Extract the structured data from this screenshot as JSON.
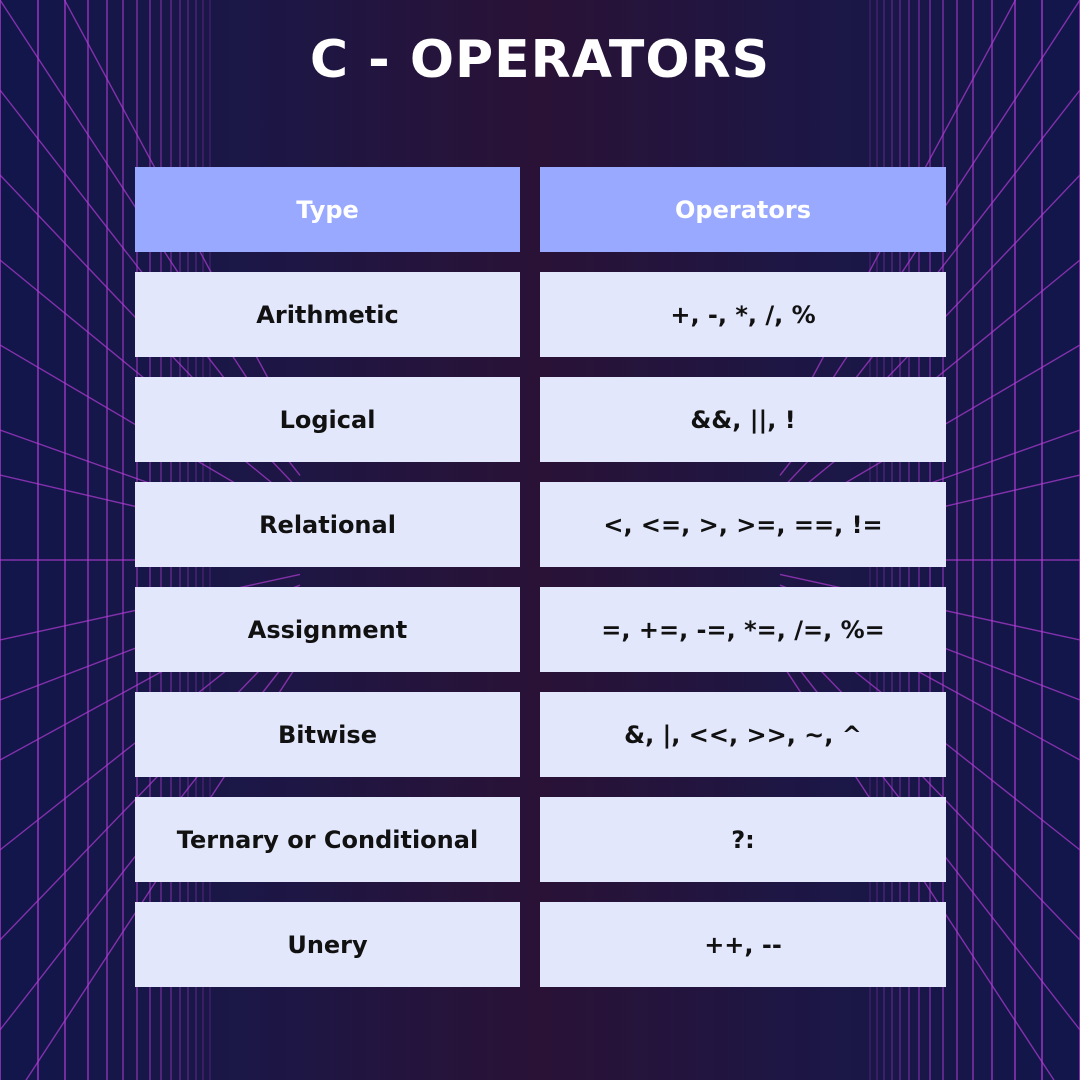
{
  "title": "C - OPERATORS",
  "colors": {
    "header_bg": "#99a9ff",
    "row_bg": "#e3e7fc",
    "grid_line": "#b23cd6",
    "background_center": "#2a1236",
    "background_edge": "#11164a"
  },
  "table": {
    "headers": [
      "Type",
      "Operators"
    ],
    "rows": [
      [
        "Arithmetic",
        "+, -, *, /, %"
      ],
      [
        "Logical",
        "&&, ||, !"
      ],
      [
        "Relational",
        "<, <=, >, >=, ==, !="
      ],
      [
        "Assignment",
        "=, +=, -=, *=, /=, %="
      ],
      [
        "Bitwise",
        "&, |, <<, >>, ~, ^"
      ],
      [
        "Ternary or Conditional",
        "?:"
      ],
      [
        "Unery",
        "++, --"
      ]
    ]
  }
}
